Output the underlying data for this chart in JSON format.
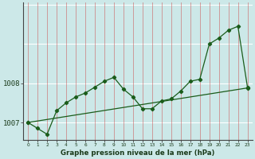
{
  "title": "Graphe pression niveau de la mer (hPa)",
  "bg_color": "#cce8e8",
  "line_color": "#1a5c1a",
  "text_color": "#1a3a1a",
  "xlim": [
    -0.5,
    23.5
  ],
  "ylim": [
    1006.55,
    1010.05
  ],
  "yticks": [
    1007,
    1008
  ],
  "series1_x": [
    0,
    1,
    2,
    3,
    4,
    5,
    6,
    7,
    8,
    9,
    10,
    11,
    12,
    13,
    14,
    15,
    16,
    17,
    18,
    19,
    20,
    21,
    22,
    23
  ],
  "series1_y": [
    1007.0,
    1006.85,
    1006.7,
    1007.3,
    1007.5,
    1007.65,
    1007.75,
    1007.9,
    1008.05,
    1008.15,
    1007.85,
    1007.65,
    1007.35,
    1007.35,
    1007.55,
    1007.6,
    1007.8,
    1008.05,
    1008.1,
    1009.0,
    1009.15,
    1009.35,
    1009.45,
    1007.9
  ],
  "trend_x": [
    0,
    23
  ],
  "trend_y": [
    1007.0,
    1007.88
  ],
  "vline_color": "#cc3333",
  "hline_color": "#ffffff"
}
